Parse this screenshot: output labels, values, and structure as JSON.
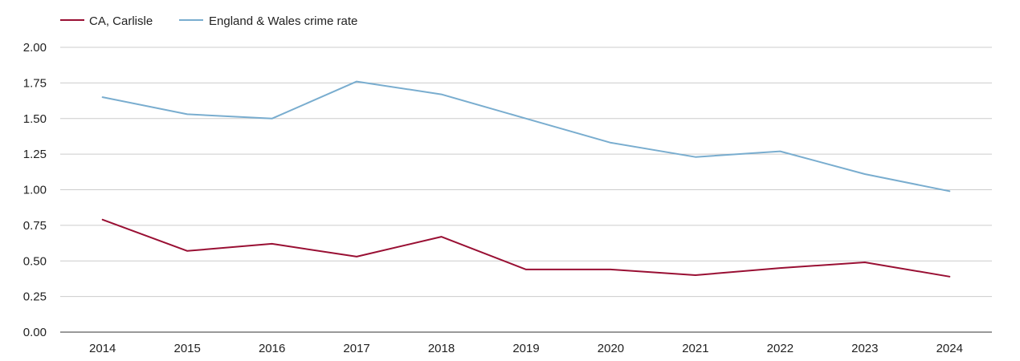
{
  "chart_data": {
    "type": "line",
    "title": "",
    "xlabel": "",
    "ylabel": "",
    "legend_position": "top-left",
    "grid": true,
    "ylim": [
      0,
      2
    ],
    "yticks": [
      "0.00",
      "0.25",
      "0.50",
      "0.75",
      "1.00",
      "1.25",
      "1.50",
      "1.75",
      "2.00"
    ],
    "categories": [
      "2014",
      "2015",
      "2016",
      "2017",
      "2018",
      "2019",
      "2020",
      "2021",
      "2022",
      "2023",
      "2024"
    ],
    "series": [
      {
        "name": "CA, Carlisle",
        "color": "#990f33",
        "values": [
          0.79,
          0.57,
          0.62,
          0.53,
          0.67,
          0.44,
          0.44,
          0.4,
          0.45,
          0.49,
          0.39
        ]
      },
      {
        "name": "England & Wales crime rate",
        "color": "#79adcf",
        "values": [
          1.65,
          1.53,
          1.5,
          1.76,
          1.67,
          1.5,
          1.33,
          1.23,
          1.27,
          1.11,
          0.99
        ]
      }
    ]
  }
}
